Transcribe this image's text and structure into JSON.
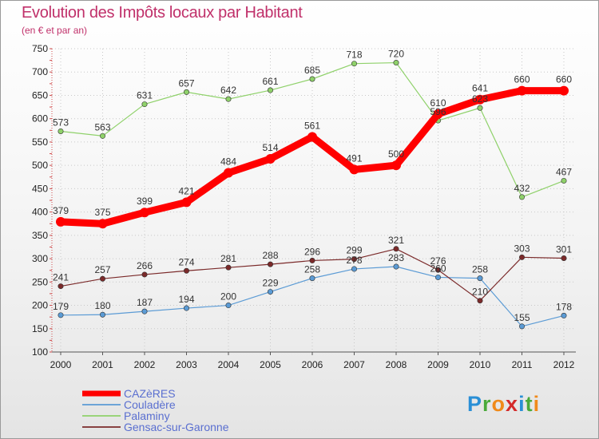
{
  "header": {
    "title": "Evolution des Impôts locaux par Habitant",
    "subtitle": "(en € et par an)"
  },
  "brand": {
    "letters": [
      "P",
      "r",
      "o",
      "x",
      "i",
      "t",
      "i"
    ],
    "colors": [
      "#2a8fd6",
      "#4aaa3a",
      "#f08a1a",
      "#d42a2a",
      "#2a8fd6",
      "#4aaa3a",
      "#f08a1a"
    ]
  },
  "chart_data": {
    "type": "line",
    "title": "Evolution des Impôts locaux par Habitant",
    "subtitle": "(en € et par an)",
    "xlabel": "",
    "ylabel": "",
    "x": [
      "2000",
      "2001",
      "2002",
      "2003",
      "2004",
      "2005",
      "2006",
      "2007",
      "2008",
      "2009",
      "2010",
      "2011",
      "2012"
    ],
    "ylim": [
      100,
      750
    ],
    "yticks": [
      100,
      150,
      200,
      250,
      300,
      350,
      400,
      450,
      500,
      550,
      600,
      650,
      700,
      750
    ],
    "grid": "horizontal dotted",
    "legend_position": "bottom-left",
    "series": [
      {
        "name": "CAZèRES",
        "color": "#ff0000",
        "values": [
          379,
          375,
          399,
          421,
          484,
          514,
          561,
          491,
          500,
          610,
          641,
          660,
          660
        ]
      },
      {
        "name": "Couladère",
        "color": "#5b9bd5",
        "values": [
          179,
          180,
          187,
          194,
          200,
          229,
          258,
          278,
          283,
          260,
          258,
          155,
          178
        ]
      },
      {
        "name": "Palaminy",
        "color": "#8fd16a",
        "values": [
          573,
          563,
          631,
          657,
          642,
          661,
          685,
          718,
          720,
          596,
          623,
          432,
          467
        ]
      },
      {
        "name": "Gensac-sur-Garonne",
        "color": "#7b2a2a",
        "values": [
          241,
          257,
          266,
          274,
          281,
          288,
          296,
          299,
          321,
          276,
          210,
          303,
          301
        ]
      }
    ]
  }
}
